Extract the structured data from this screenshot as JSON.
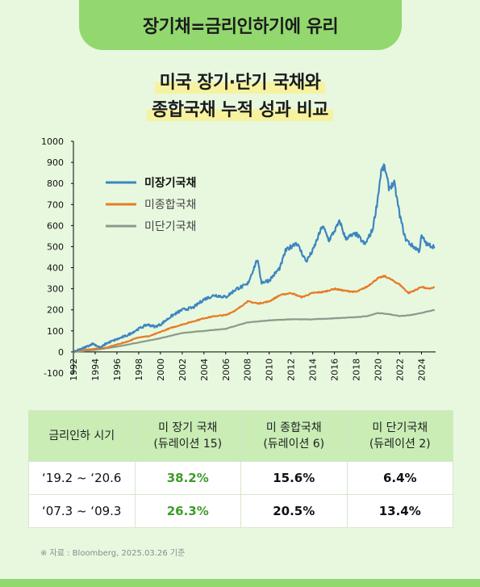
{
  "banner": {
    "title": "장기채=금리인하기에 유리"
  },
  "subtitle": {
    "line1": "미국 장기·단기 국채와",
    "line2": "종합국채 누적 성과 비교"
  },
  "chart_data": {
    "type": "line",
    "title": "미국 장기·단기 국채와 종합국채 누적 성과 비교",
    "xlabel": "",
    "ylabel": "",
    "ylim": [
      -100,
      1000
    ],
    "yticks": [
      -100,
      0,
      100,
      200,
      300,
      400,
      500,
      600,
      700,
      800,
      900,
      1000
    ],
    "xlim": [
      1992,
      2025.3
    ],
    "xticks": [
      "1992",
      "1994",
      "1996",
      "1998",
      "2000",
      "2002",
      "2004",
      "2006",
      "2008",
      "2010",
      "2012",
      "2014",
      "2016",
      "2018",
      "2020",
      "2022",
      "2024"
    ],
    "legend_position": "top-left",
    "series": [
      {
        "name": "미장기국채",
        "color": "#3d86c0",
        "bold": true,
        "x": [
          1992,
          1993,
          1993.8,
          1994.5,
          1995,
          1996,
          1997,
          1998,
          1998.8,
          1999.5,
          2000,
          2001,
          2002,
          2003,
          2004,
          2005,
          2006,
          2007,
          2008,
          2008.9,
          2009.3,
          2010,
          2011,
          2011.5,
          2012.5,
          2013.4,
          2014,
          2014.9,
          2015.5,
          2016.5,
          2017,
          2018,
          2018.8,
          2019.5,
          2019.9,
          2020.3,
          2020.6,
          2021,
          2021.5,
          2022,
          2022.5,
          2023,
          2023.8,
          2024,
          2024.5,
          2025.2
        ],
        "values": [
          0,
          20,
          40,
          20,
          40,
          60,
          80,
          110,
          130,
          120,
          130,
          170,
          200,
          210,
          250,
          270,
          260,
          300,
          320,
          440,
          330,
          340,
          400,
          480,
          520,
          430,
          480,
          600,
          530,
          620,
          540,
          560,
          510,
          580,
          700,
          860,
          880,
          780,
          800,
          650,
          540,
          510,
          480,
          550,
          510,
          500
        ]
      },
      {
        "name": "미종합국채",
        "color": "#e57c26",
        "bold": false,
        "x": [
          1992,
          1993,
          1994,
          1995,
          1996,
          1997,
          1998,
          1999,
          2000,
          2001,
          2002,
          2003,
          2004,
          2005,
          2006,
          2007,
          2008,
          2009,
          2010,
          2011,
          2012,
          2013,
          2014,
          2015,
          2016,
          2017,
          2018,
          2019,
          2020,
          2020.6,
          2021,
          2022,
          2022.8,
          2023.5,
          2024,
          2024.5,
          2025.2
        ],
        "values": [
          0,
          10,
          15,
          20,
          35,
          50,
          70,
          75,
          95,
          115,
          130,
          145,
          160,
          170,
          175,
          200,
          240,
          230,
          240,
          270,
          280,
          260,
          280,
          285,
          300,
          290,
          285,
          310,
          350,
          360,
          350,
          320,
          280,
          295,
          310,
          300,
          305
        ]
      },
      {
        "name": "미단기국채",
        "color": "#8c9a8c",
        "bold": false,
        "x": [
          1992,
          1994,
          1996,
          1998,
          2000,
          2002,
          2004,
          2006,
          2008,
          2010,
          2012,
          2014,
          2016,
          2018,
          2019,
          2020,
          2021,
          2022,
          2023,
          2024,
          2025.2
        ],
        "values": [
          0,
          10,
          25,
          45,
          65,
          90,
          100,
          110,
          140,
          150,
          155,
          155,
          160,
          165,
          170,
          185,
          180,
          170,
          175,
          185,
          200
        ]
      }
    ]
  },
  "table": {
    "headers": [
      "금리인하 시기",
      "미 장기 국채\n(듀레이션 15)",
      "미 종합국채\n(듀레이션 6)",
      "미 단기국채\n(듀레이션 2)"
    ],
    "rows": [
      {
        "period": "‘19.2 ~ ‘20.6",
        "long": "38.2%",
        "agg": "15.6%",
        "short": "6.4%"
      },
      {
        "period": "‘07.3 ~ ‘09.3",
        "long": "26.3%",
        "agg": "20.5%",
        "short": "13.4%"
      }
    ]
  },
  "source": "※ 자료 : Bloomberg, 2025.03.26 기준",
  "colors": {
    "background": "#e8f8df",
    "banner": "#92d86f",
    "header": "#c9edb5",
    "highlight": "#3d9b2a"
  }
}
